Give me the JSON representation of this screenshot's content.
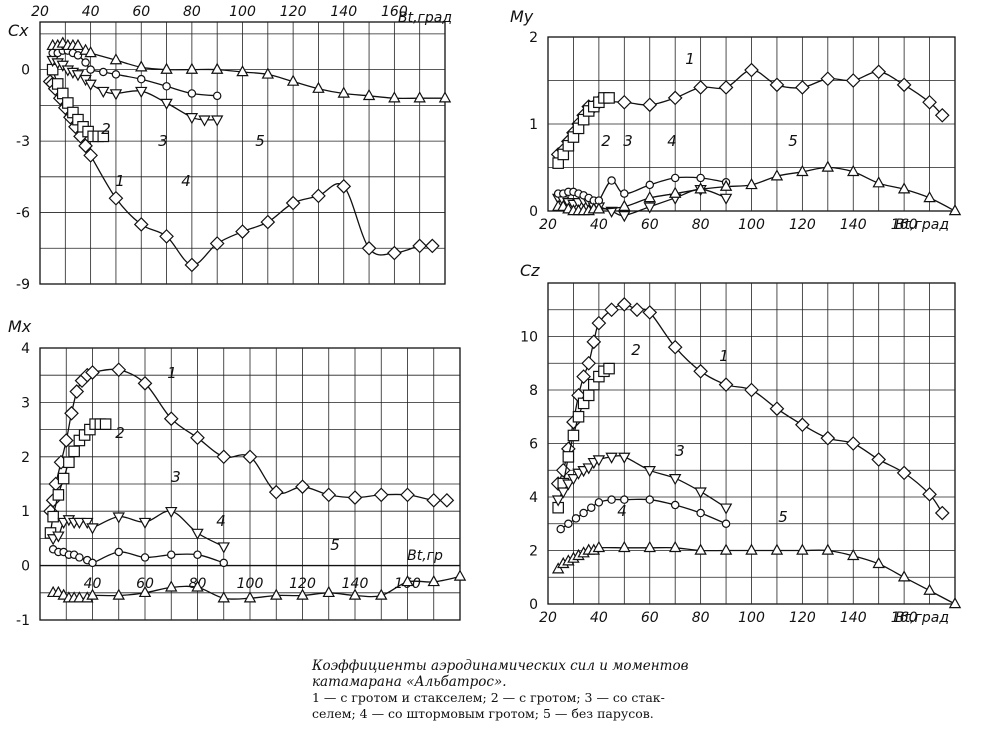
{
  "chart_data": [
    {
      "id": "cx",
      "type": "line",
      "ylabel": "Cx",
      "xlabel": "Bt,град",
      "xlim": [
        20,
        180
      ],
      "ylim": [
        -9,
        2
      ],
      "xticks": [
        "20",
        "40",
        "60",
        "80",
        "100",
        "120",
        "140",
        "160"
      ],
      "yticks": [
        "0",
        "-3",
        "-6",
        "-9"
      ],
      "ytick_values": [
        0,
        -3,
        -6,
        -9
      ],
      "grid": true,
      "series": [
        {
          "name": "1",
          "marker": "diamond",
          "x": [
            24,
            25,
            26,
            28,
            30,
            32,
            34,
            36,
            38,
            40,
            50,
            60,
            70,
            80,
            90,
            100,
            110,
            120,
            130,
            140,
            150,
            160,
            170,
            175
          ],
          "y": [
            -0.5,
            -0.6,
            -0.8,
            -1.2,
            -1.6,
            -2.0,
            -2.4,
            -2.8,
            -3.2,
            -3.6,
            -5.4,
            -6.5,
            -7.0,
            -8.2,
            -7.3,
            -6.8,
            -6.4,
            -5.6,
            -5.3,
            -4.9,
            -7.5,
            -7.7,
            -7.4,
            -7.4
          ]
        },
        {
          "name": "2",
          "marker": "square",
          "x": [
            25,
            27,
            29,
            31,
            33,
            35,
            37,
            39,
            41,
            43,
            45
          ],
          "y": [
            0.0,
            -0.6,
            -1.0,
            -1.4,
            -1.8,
            -2.1,
            -2.4,
            -2.6,
            -2.8,
            -2.8,
            -2.8
          ]
        },
        {
          "name": "3",
          "marker": "triangle-down",
          "x": [
            25,
            27,
            29,
            31,
            33,
            35,
            38,
            40,
            45,
            50,
            60,
            70,
            80,
            85,
            90
          ],
          "y": [
            0.4,
            0.3,
            0.2,
            0.0,
            -0.1,
            -0.2,
            -0.4,
            -0.6,
            -0.9,
            -1.0,
            -0.9,
            -1.4,
            -2.0,
            -2.1,
            -2.1
          ]
        },
        {
          "name": "4",
          "marker": "circle",
          "x": [
            25,
            27,
            29,
            31,
            33,
            35,
            38,
            40,
            45,
            50,
            60,
            70,
            80,
            90
          ],
          "y": [
            0.7,
            0.7,
            0.8,
            0.8,
            0.7,
            0.6,
            0.3,
            0.0,
            -0.1,
            -0.2,
            -0.4,
            -0.7,
            -1.0,
            -1.1
          ]
        },
        {
          "name": "5",
          "marker": "triangle",
          "x": [
            25,
            27,
            29,
            31,
            33,
            35,
            38,
            40,
            50,
            60,
            70,
            80,
            90,
            100,
            110,
            120,
            130,
            140,
            150,
            160,
            170,
            180
          ],
          "y": [
            1.0,
            1.0,
            1.1,
            1.0,
            1.0,
            1.0,
            0.8,
            0.7,
            0.4,
            0.1,
            0.0,
            0.0,
            0.0,
            -0.1,
            -0.2,
            -0.5,
            -0.8,
            -1.0,
            -1.1,
            -1.2,
            -1.2,
            -1.2
          ]
        }
      ]
    },
    {
      "id": "my",
      "type": "line",
      "ylabel": "My",
      "xlabel": "Bt,град",
      "xlim": [
        20,
        180
      ],
      "ylim": [
        0,
        2
      ],
      "xticks": [
        "20",
        "40",
        "60",
        "80",
        "100",
        "120",
        "140",
        "160"
      ],
      "yticks": [
        "0",
        "1",
        "2"
      ],
      "ytick_values": [
        0,
        1,
        2
      ],
      "grid": true,
      "series": [
        {
          "name": "1",
          "marker": "diamond",
          "x": [
            24,
            26,
            28,
            30,
            32,
            34,
            36,
            38,
            40,
            50,
            60,
            70,
            80,
            90,
            100,
            110,
            120,
            130,
            140,
            150,
            160,
            170,
            175
          ],
          "y": [
            0.65,
            0.7,
            0.8,
            0.9,
            1.0,
            1.1,
            1.2,
            1.2,
            1.25,
            1.25,
            1.22,
            1.3,
            1.42,
            1.42,
            1.62,
            1.45,
            1.42,
            1.52,
            1.5,
            1.6,
            1.45,
            1.25,
            1.1
          ]
        },
        {
          "name": "2",
          "marker": "square",
          "x": [
            24,
            26,
            28,
            30,
            32,
            34,
            36,
            38,
            40,
            42,
            44
          ],
          "y": [
            0.55,
            0.65,
            0.75,
            0.85,
            0.95,
            1.05,
            1.15,
            1.2,
            1.25,
            1.3,
            1.3
          ]
        },
        {
          "name": "3",
          "marker": "triangle-down",
          "x": [
            24,
            26,
            28,
            30,
            32,
            34,
            36,
            38,
            40,
            45,
            50,
            60,
            70,
            80,
            90
          ],
          "y": [
            0.15,
            0.12,
            0.1,
            0.08,
            0.1,
            0.12,
            0.1,
            0.05,
            0.05,
            0.0,
            -0.05,
            0.05,
            0.15,
            0.25,
            0.15
          ]
        },
        {
          "name": "4",
          "marker": "circle",
          "x": [
            24,
            26,
            28,
            30,
            32,
            34,
            36,
            38,
            40,
            45,
            50,
            60,
            70,
            80,
            90
          ],
          "y": [
            0.2,
            0.2,
            0.22,
            0.22,
            0.2,
            0.18,
            0.15,
            0.12,
            0.12,
            0.35,
            0.2,
            0.3,
            0.38,
            0.38,
            0.33
          ]
        },
        {
          "name": "5",
          "marker": "triangle",
          "x": [
            24,
            26,
            28,
            30,
            32,
            34,
            36,
            38,
            40,
            50,
            60,
            70,
            80,
            90,
            100,
            110,
            120,
            130,
            140,
            150,
            160,
            170,
            180
          ],
          "y": [
            0.05,
            0.05,
            0.02,
            0.0,
            0.0,
            0.0,
            0.0,
            0.02,
            0.02,
            0.05,
            0.15,
            0.2,
            0.25,
            0.28,
            0.3,
            0.4,
            0.45,
            0.5,
            0.45,
            0.32,
            0.25,
            0.15,
            0.0
          ]
        }
      ]
    },
    {
      "id": "mx",
      "type": "line",
      "ylabel": "Mx",
      "xlabel": "Bt,гр",
      "xlim": [
        20,
        180
      ],
      "ylim": [
        -1,
        4
      ],
      "xticks": [
        "40",
        "60",
        "80",
        "100",
        "120",
        "140",
        "160"
      ],
      "xtick_values": [
        40,
        60,
        80,
        100,
        120,
        140,
        160
      ],
      "yticks": [
        "4",
        "3",
        "2",
        "1",
        "0",
        "-1"
      ],
      "ytick_values": [
        4,
        3,
        2,
        1,
        0,
        -1
      ],
      "grid": true,
      "series": [
        {
          "name": "1",
          "marker": "diamond",
          "x": [
            24,
            25,
            26,
            28,
            30,
            32,
            34,
            36,
            38,
            40,
            50,
            60,
            70,
            80,
            90,
            100,
            110,
            120,
            130,
            140,
            150,
            160,
            170,
            175
          ],
          "y": [
            1.0,
            1.2,
            1.5,
            1.9,
            2.3,
            2.8,
            3.2,
            3.4,
            3.5,
            3.55,
            3.6,
            3.35,
            2.7,
            2.35,
            2.0,
            2.0,
            1.35,
            1.45,
            1.3,
            1.25,
            1.3,
            1.3,
            1.2,
            1.2
          ]
        },
        {
          "name": "2",
          "marker": "square",
          "x": [
            24,
            25,
            27,
            29,
            31,
            33,
            35,
            37,
            39,
            41,
            43,
            45
          ],
          "y": [
            0.6,
            0.9,
            1.3,
            1.6,
            1.9,
            2.1,
            2.3,
            2.4,
            2.5,
            2.6,
            2.6,
            2.6
          ]
        },
        {
          "name": "3",
          "marker": "triangle-down",
          "x": [
            25,
            27,
            29,
            31,
            33,
            35,
            38,
            40,
            50,
            60,
            70,
            80,
            90
          ],
          "y": [
            0.5,
            0.55,
            0.8,
            0.85,
            0.8,
            0.8,
            0.8,
            0.7,
            0.9,
            0.8,
            1.0,
            0.6,
            0.35
          ]
        },
        {
          "name": "4",
          "marker": "circle",
          "x": [
            25,
            27,
            29,
            31,
            33,
            35,
            38,
            40,
            50,
            60,
            70,
            80,
            90
          ],
          "y": [
            0.3,
            0.25,
            0.25,
            0.2,
            0.2,
            0.15,
            0.1,
            0.05,
            0.25,
            0.15,
            0.2,
            0.2,
            0.05
          ]
        },
        {
          "name": "5",
          "marker": "triangle",
          "x": [
            25,
            27,
            29,
            31,
            33,
            35,
            38,
            40,
            50,
            60,
            70,
            80,
            90,
            100,
            110,
            120,
            130,
            140,
            150,
            160,
            170,
            180
          ],
          "y": [
            -0.5,
            -0.5,
            -0.55,
            -0.6,
            -0.6,
            -0.6,
            -0.6,
            -0.55,
            -0.55,
            -0.5,
            -0.4,
            -0.4,
            -0.6,
            -0.6,
            -0.55,
            -0.55,
            -0.5,
            -0.55,
            -0.55,
            -0.3,
            -0.3,
            -0.2
          ]
        }
      ]
    },
    {
      "id": "cz",
      "type": "line",
      "ylabel": "Cz",
      "xlabel": "Bt,град",
      "xlim": [
        20,
        180
      ],
      "ylim": [
        0,
        12
      ],
      "xticks": [
        "20",
        "40",
        "60",
        "80",
        "100",
        "120",
        "140",
        "160"
      ],
      "yticks": [
        "0",
        "2",
        "4",
        "6",
        "8",
        "10"
      ],
      "ytick_values": [
        0,
        2,
        4,
        6,
        8,
        10
      ],
      "grid": true,
      "series": [
        {
          "name": "1",
          "marker": "diamond",
          "x": [
            24,
            26,
            28,
            30,
            32,
            34,
            36,
            38,
            40,
            45,
            50,
            55,
            60,
            70,
            80,
            90,
            100,
            110,
            120,
            130,
            140,
            150,
            160,
            170,
            175
          ],
          "y": [
            4.5,
            5.0,
            5.8,
            6.8,
            7.8,
            8.5,
            9.0,
            9.8,
            10.5,
            11.0,
            11.2,
            11.0,
            10.9,
            9.6,
            8.7,
            8.2,
            8.0,
            7.3,
            6.7,
            6.2,
            6.0,
            5.4,
            4.9,
            4.1,
            3.4
          ]
        },
        {
          "name": "2",
          "marker": "square",
          "x": [
            24,
            26,
            28,
            30,
            32,
            34,
            36,
            38,
            40,
            42,
            44
          ],
          "y": [
            3.6,
            4.5,
            5.5,
            6.3,
            7.0,
            7.5,
            7.8,
            8.2,
            8.5,
            8.7,
            8.8
          ]
        },
        {
          "name": "3",
          "marker": "triangle-down",
          "x": [
            24,
            26,
            28,
            30,
            32,
            34,
            36,
            38,
            40,
            45,
            50,
            60,
            70,
            80,
            90
          ],
          "y": [
            3.9,
            4.2,
            4.5,
            4.7,
            4.9,
            5.0,
            5.1,
            5.3,
            5.4,
            5.5,
            5.5,
            5.0,
            4.7,
            4.2,
            3.6
          ]
        },
        {
          "name": "4",
          "marker": "circle",
          "x": [
            25,
            28,
            31,
            34,
            37,
            40,
            45,
            50,
            60,
            70,
            80,
            90
          ],
          "y": [
            2.8,
            3.0,
            3.2,
            3.4,
            3.6,
            3.8,
            3.9,
            3.9,
            3.9,
            3.7,
            3.4,
            3.0
          ]
        },
        {
          "name": "5",
          "marker": "triangle",
          "x": [
            24,
            26,
            28,
            30,
            32,
            34,
            36,
            38,
            40,
            50,
            60,
            70,
            80,
            90,
            100,
            110,
            120,
            130,
            140,
            150,
            160,
            170,
            180
          ],
          "y": [
            1.3,
            1.5,
            1.6,
            1.7,
            1.8,
            1.9,
            2.0,
            2.0,
            2.1,
            2.1,
            2.1,
            2.1,
            2.0,
            2.0,
            2.0,
            2.0,
            2.0,
            2.0,
            1.8,
            1.5,
            1.0,
            0.5,
            0.0
          ]
        }
      ]
    }
  ],
  "caption": {
    "line1": "Коэффициенты аэродинамических сил и моментов",
    "line2": "катамарана «Альбатрос».",
    "legend_line1": "1 — с гротом и стакселем; 2 — с гротом; 3 — со стак-",
    "legend_line2": "селем; 4 — со штормовым гротом; 5 — без парусов."
  }
}
